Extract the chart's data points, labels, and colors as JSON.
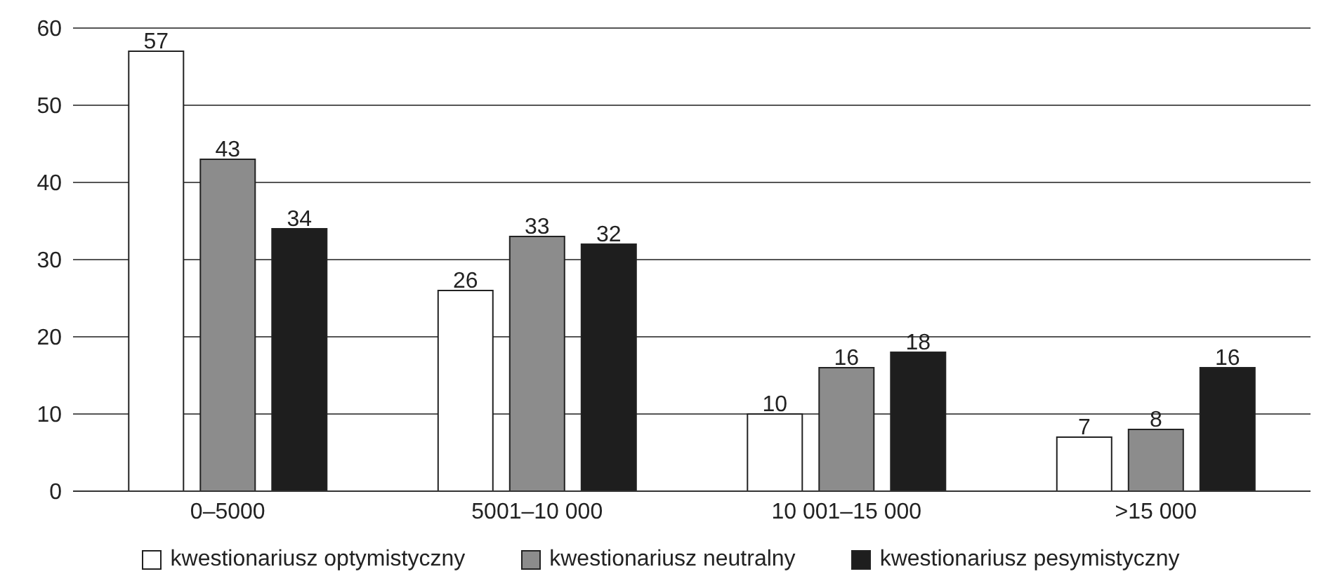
{
  "chart_data": {
    "type": "bar",
    "categories": [
      "0–5000",
      "5001–10 000",
      "10 001–15 000",
      ">15 000"
    ],
    "series": [
      {
        "name": "kwestionariusz optymistyczny",
        "color": "#ffffff",
        "values": [
          57,
          26,
          10,
          7
        ]
      },
      {
        "name": "kwestionariusz neutralny",
        "color": "#8c8c8c",
        "values": [
          43,
          33,
          16,
          8
        ]
      },
      {
        "name": "kwestionariusz pesymistyczny",
        "color": "#1e1e1e",
        "values": [
          34,
          32,
          18,
          16
        ]
      }
    ],
    "ylim": [
      0,
      60
    ],
    "yticks": [
      0,
      10,
      20,
      30,
      40,
      50,
      60
    ],
    "grid": "y",
    "legend": "bottom",
    "data_labels": true
  }
}
